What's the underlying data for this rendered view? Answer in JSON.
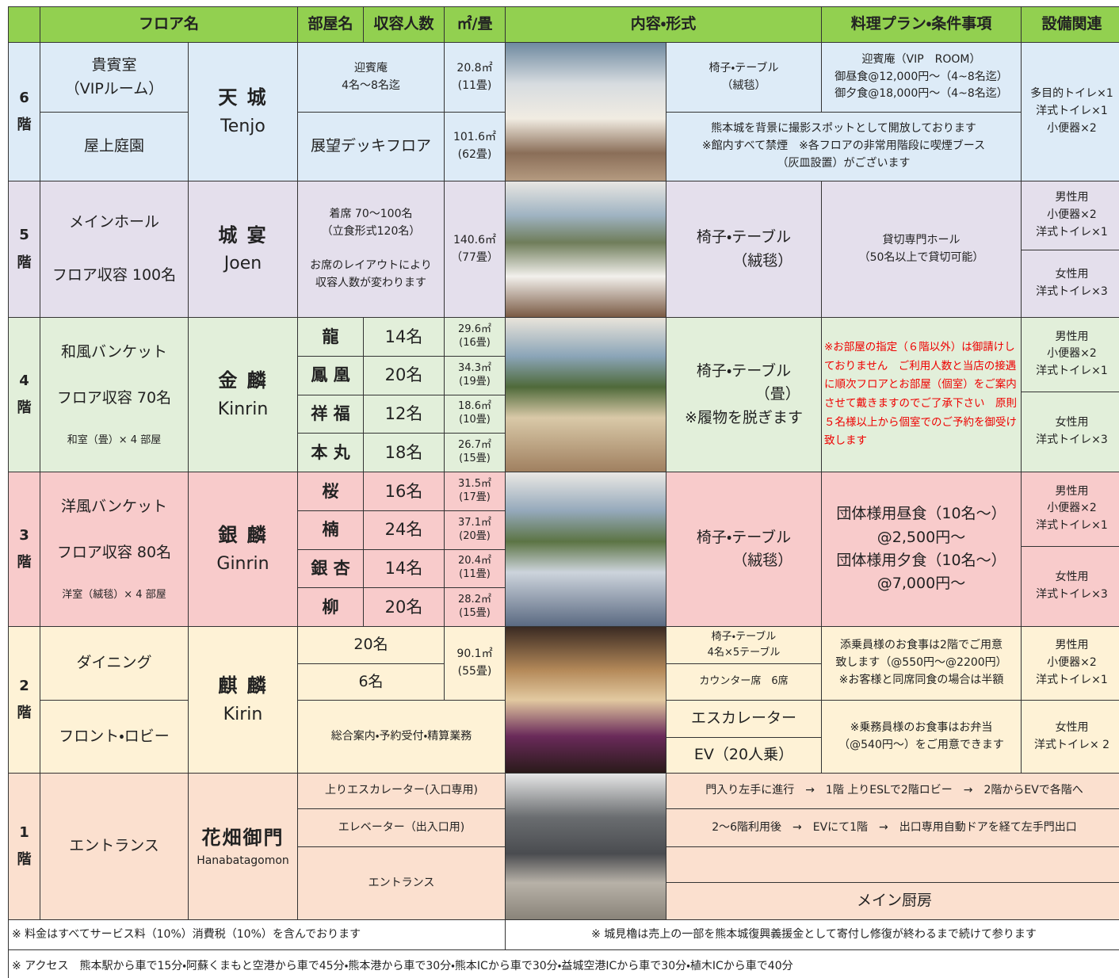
{
  "header": {
    "floor_name": "フロア名",
    "room": "部屋名",
    "capacity": "収容人数",
    "area": "㎡/畳",
    "content": "内容・形式",
    "plan": "料理プラン・条件事項",
    "facilities": "設備関連"
  },
  "floor6": {
    "level": "6\n階",
    "area1": "貴賓室\n（VIPルーム）",
    "area2": "屋上庭園",
    "name": "天 城",
    "roman": "Tenjo",
    "room1": "迎賓庵\n4名～8名迄",
    "size1": "20.8㎡\n(11畳)",
    "room2": "展望デッキフロア",
    "size2": "101.6㎡\n(62畳)",
    "style": "椅子・テーブル\n（絨毯）",
    "plan": "迎賓庵（VIP　ROOM）\n御昼食@12,000円～（4~8名迄）\n御夕食@18,000円～（4~8名迄）",
    "note": "熊本城を背景に撮影スポットとして開放しております\n※館内すべて禁煙　※各フロアの非常用階段に喫煙ブース\n（灰皿設置）がございます",
    "facilities": "多目的トイレ×1\n洋式トイレ×1\n小便器×2"
  },
  "floor5": {
    "level": "5\n階",
    "area": "メインホール",
    "area_capacity": "フロア収容 100名",
    "name": "城 宴",
    "roman": "Joen",
    "capacity": "着席 70～100名\n（立食形式120名）\n\nお席のレイアウトにより\n収容人数が変わります",
    "size": "140.6㎡\n（77畳）",
    "style": "椅子・テーブル\n　　　（絨毯）",
    "plan": "貸切専門ホール\n（50名以上で貸切可能）",
    "facilities_men": "男性用\n小便器×2\n洋式トイレ×1",
    "facilities_women": "女性用\n洋式トイレ×3"
  },
  "floor4": {
    "level": "4\n階",
    "area": "和風バンケット",
    "area_capacity": "フロア収容 70名",
    "area_rooms": "和室（畳）× 4 部屋",
    "name": "金 麟",
    "roman": "Kinrin",
    "rooms": [
      {
        "name": "龍",
        "capacity": "14名",
        "size": "29.6㎡\n(16畳)"
      },
      {
        "name": "鳳 凰",
        "capacity": "20名",
        "size": "34.3㎡\n(19畳)"
      },
      {
        "name": "祥 福",
        "capacity": "12名",
        "size": "18.6㎡\n(10畳)"
      },
      {
        "name": "本 丸",
        "capacity": "18名",
        "size": "26.7㎡\n(15畳)"
      }
    ],
    "style": "椅子・テーブル\n　　　　　（畳）\n※履物を脱ぎます",
    "plan": "※お部屋の指定（６階以外）は御請けしておりません　ご利用人数と当店の接遇に順次フロアとお部屋（個室）をご案内させて戴きますのでご了承下さい　原則５名様以上から個室でのご予約を御受け致します",
    "facilities_men": "男性用\n小便器×2\n洋式トイレ×1",
    "facilities_women": "女性用\n洋式トイレ×3"
  },
  "floor3": {
    "level": "3\n階",
    "area": "洋風バンケット",
    "area_capacity": "フロア収容 80名",
    "area_rooms": "洋室（絨毯）× 4 部屋",
    "name": "銀 麟",
    "roman": "Ginrin",
    "rooms": [
      {
        "name": "桜",
        "capacity": "16名",
        "size": "31.5㎡\n(17畳)"
      },
      {
        "name": "楠",
        "capacity": "24名",
        "size": "37.1㎡\n(20畳)"
      },
      {
        "name": "銀 杏",
        "capacity": "14名",
        "size": "20.4㎡\n(11畳)"
      },
      {
        "name": "柳",
        "capacity": "20名",
        "size": "28.2㎡\n(15畳)"
      }
    ],
    "style": "椅子・テーブル\n　　　（絨毯）",
    "plan": "団体様用昼食（10名～）\n@2,500円～\n団体様用夕食（10名～）\n@7,000円～",
    "facilities_men": "男性用\n小便器×2\n洋式トイレ×1",
    "facilities_women": "女性用\n洋式トイレ×3"
  },
  "floor2": {
    "level": "2\n階",
    "area1": "ダイニング",
    "area2": "フロント・ロビー",
    "name": "麒 麟",
    "roman": "Kirin",
    "capacity1": "20名",
    "capacity2": "6名",
    "size": "90.1㎡\n(55畳)",
    "service": "総合案内・予約受付・精算業務",
    "style1": "椅子・テーブル\n4名×5テーブル",
    "style2": "カウンター席　6席",
    "style3": "エスカレーター",
    "style4": "EV（20人乗）",
    "plan1": "添乗員様のお食事は2階でご用意\n致します（@550円～@2200円）\n※お客様と同席同食の場合は半額",
    "plan2": "※乗務員様のお食事はお弁当\n（@540円～）をご用意できます",
    "facilities_men": "男性用\n小便器×2\n洋式トイレ×1",
    "facilities_women": "女性用\n洋式トイレ× 2"
  },
  "floor1": {
    "level": "1\n階",
    "area": "エントランス",
    "name": "花畑御門",
    "roman": "Hanabatagomon",
    "route1": "上りエスカレーター(入口専用)",
    "route2": "エレベーター（出入口用)",
    "route3": "エントランス",
    "guide1": "門入り左手に進行　→　1階 上りESLで2階ロビー　→　2階からEVで各階へ",
    "guide2": "2～6階利用後　→　EVにて1階　→　出口専用自動ドアを経て左手門出口",
    "kitchen": "メイン厨房"
  },
  "footer": {
    "price": "※ 料金はすべてサービス料（10%）消費税（10%）を含んでおります",
    "donation": "※ 城見櫓は売上の一部を熊本城復興義援金として寄付し修復が終わるまで続けて参ります",
    "access": "※ アクセス　熊本駅から車で15分・阿蘇くまもと空港から車で45分・熊本港から車で30分・熊本ICから車で30分・益城空港ICから車で30分・植木ICから車で40分"
  }
}
